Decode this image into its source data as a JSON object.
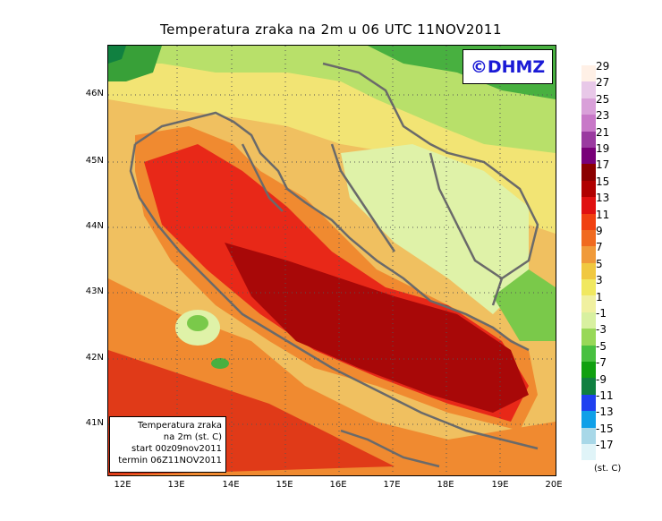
{
  "title": "Temperatura zraka na 2m u 06 UTC 11NOV2011",
  "logo_text": "©DHMZ",
  "lat_labels": [
    "46N",
    "45N",
    "44N",
    "43N",
    "42N",
    "41N"
  ],
  "lon_labels": [
    "12E",
    "13E",
    "14E",
    "15E",
    "16E",
    "17E",
    "18E",
    "19E",
    "20E"
  ],
  "infobox": {
    "line1": "Temperatura zraka",
    "line2": "na 2m (st. C)",
    "line3": "start 00z09nov2011",
    "line4": "termin 06Z11NOV2011"
  },
  "legend": {
    "labels": [
      "29",
      "27",
      "25",
      "23",
      "21",
      "19",
      "17",
      "15",
      "13",
      "11",
      "9",
      "7",
      "5",
      "3",
      "1",
      "-1",
      "-3",
      "-5",
      "-7",
      "-9",
      "-11",
      "-13",
      "-15",
      "-17"
    ],
    "colors": [
      "#fff0e6",
      "#e8c8e8",
      "#d9a0d9",
      "#c878c8",
      "#9a3aa0",
      "#780078",
      "#8b0000",
      "#b00000",
      "#e01010",
      "#f04010",
      "#f06a20",
      "#f09a3a",
      "#f0c840",
      "#f0e860",
      "#f0f0a0",
      "#d8f0a0",
      "#98d858",
      "#48c040",
      "#10a010",
      "#108040",
      "#2040f0",
      "#10a0e8",
      "#a8d8e8",
      "#e0f4f8"
    ],
    "unit": "(st. C)"
  },
  "colors": {
    "coast": "#6a6a6a",
    "land_green": "#7ac94a",
    "land_light": "#dff2a8",
    "land_yellow": "#f2e474",
    "sea_orange": "#f0a050",
    "sea_red": "#e82818",
    "sea_dark": "#a80808"
  }
}
